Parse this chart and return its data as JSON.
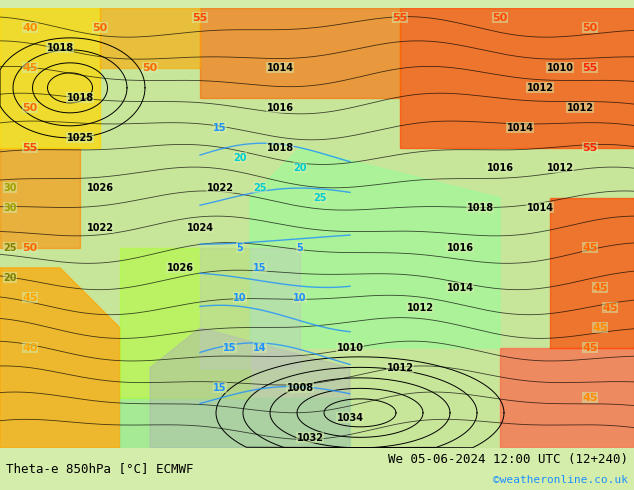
{
  "title_left": "Theta-e 850hPa [°C] ECMWF",
  "title_right": "We 05-06-2024 12:00 UTC (12+240)",
  "copyright": "©weatheronline.co.uk",
  "bg_color": "#d4edaa",
  "border_color": "#000000",
  "figsize": [
    6.34,
    4.9
  ],
  "dpi": 100
}
